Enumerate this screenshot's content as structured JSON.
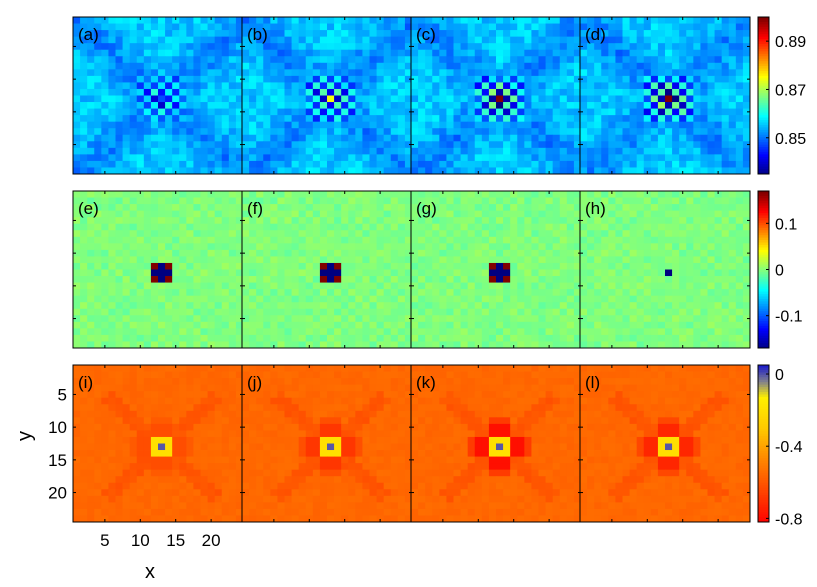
{
  "chart_data": {
    "type": "heatmap",
    "grid_size": 24,
    "xlabel": "x",
    "ylabel": "y",
    "x_ticks": [
      5,
      10,
      15,
      20
    ],
    "y_ticks": [
      5,
      10,
      15,
      20
    ],
    "panel_labels": [
      "(a)",
      "(b)",
      "(c)",
      "(d)",
      "(e)",
      "(f)",
      "(g)",
      "(h)",
      "(i)",
      "(j)",
      "(k)",
      "(l)"
    ],
    "rows": [
      {
        "colormap": "jet",
        "clim": [
          0.835,
          0.9
        ],
        "colorbar_ticks": [
          "0.89",
          "0.87",
          "0.85"
        ],
        "colorbar_tick_values": [
          0.89,
          0.87,
          0.85
        ],
        "background": 0.856,
        "center": [
          13,
          13
        ],
        "panels": [
          {
            "label": "(a)",
            "center_value": 0.848,
            "checker_amplitude": 0.012,
            "checker_radius": 3
          },
          {
            "label": "(b)",
            "center_value": 0.875,
            "checker_amplitude": 0.016,
            "checker_radius": 3
          },
          {
            "label": "(c)",
            "center_value": 0.9,
            "checker_amplitude": 0.02,
            "checker_radius": 3
          },
          {
            "label": "(d)",
            "center_value": 0.9,
            "checker_amplitude": 0.02,
            "checker_radius": 3
          }
        ]
      },
      {
        "colormap": "jet",
        "clim": [
          -0.17,
          0.17
        ],
        "colorbar_ticks": [
          "0.1",
          "0",
          "-0.1"
        ],
        "colorbar_tick_values": [
          0.1,
          0.0,
          -0.1
        ],
        "background": 0.0,
        "center": [
          13,
          13
        ],
        "panels": [
          {
            "label": "(e)",
            "center_value": -0.17,
            "checker_amplitude": 0.02,
            "checker_radius": 1
          },
          {
            "label": "(f)",
            "center_value": -0.17,
            "checker_amplitude": 0.02,
            "checker_radius": 1
          },
          {
            "label": "(g)",
            "center_value": -0.17,
            "checker_amplitude": 0.012,
            "checker_radius": 1
          },
          {
            "label": "(h)",
            "center_value": -0.17,
            "checker_amplitude": 0.0,
            "checker_radius": 0
          }
        ]
      },
      {
        "colormap": "autumn-blue",
        "clim": [
          -0.82,
          0.05
        ],
        "colorbar_ticks": [
          "0",
          "-0.4",
          "-0.8"
        ],
        "colorbar_tick_values": [
          0.0,
          -0.4,
          -0.8
        ],
        "background": -0.55,
        "center": [
          13,
          13
        ],
        "panels": [
          {
            "label": "(i)",
            "center_value": 0.0,
            "cross_value": -0.62
          },
          {
            "label": "(j)",
            "center_value": 0.0,
            "cross_value": -0.68
          },
          {
            "label": "(k)",
            "center_value": 0.0,
            "cross_value": -0.78
          },
          {
            "label": "(l)",
            "center_value": 0.0,
            "cross_value": -0.72
          }
        ]
      }
    ]
  }
}
